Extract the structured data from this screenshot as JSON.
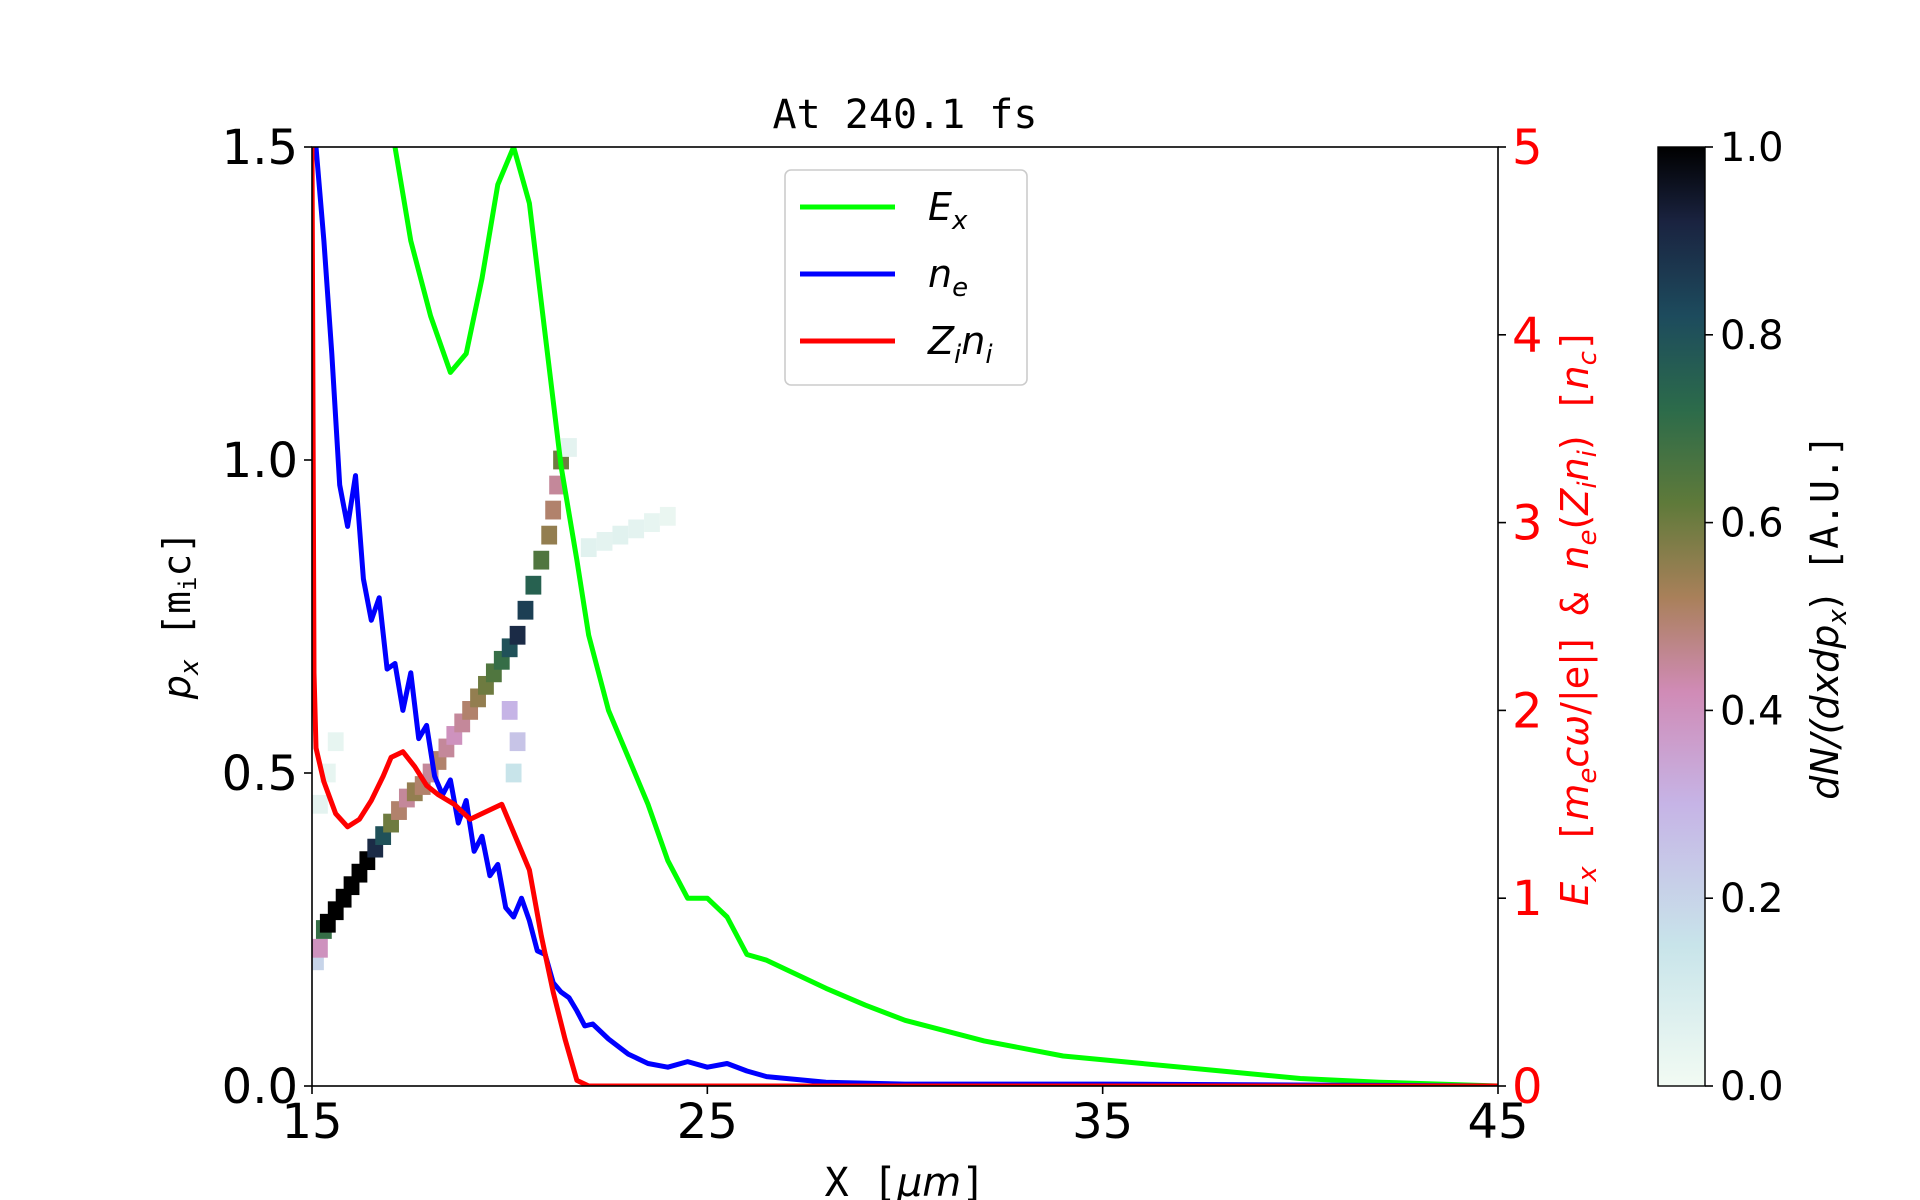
{
  "chart_data": {
    "type": "line",
    "title": "At 240.1 fs",
    "xlabel": "X [μm]",
    "ylabel_left": "p_x [m_ic]",
    "ylabel_right": "E_x [m_ecω/|e|] & n_e(Z_in_i) [n_c]",
    "xlim": [
      15,
      45
    ],
    "ylim_left": [
      0,
      1.5
    ],
    "ylim_right": [
      0,
      5
    ],
    "x_ticks": [
      "15",
      "25",
      "35",
      "45"
    ],
    "y_left_ticks": [
      "0.0",
      "0.5",
      "1.0",
      "1.5"
    ],
    "y_right_ticks": [
      "0",
      "1",
      "2",
      "3",
      "4",
      "5"
    ],
    "legend": {
      "placement": "top-center",
      "entries": [
        {
          "label_main": "E",
          "label_sub": "x",
          "color": "#00ff00"
        },
        {
          "label_main": "n",
          "label_sub": "e",
          "color": "#0000ff"
        },
        {
          "label_main": "Z",
          "label_sub": "i",
          "label_main2": "n",
          "label_sub2": "i",
          "color": "#ff0000"
        }
      ]
    },
    "series": [
      {
        "name": "E_x",
        "axis": "right",
        "color": "#00ff00",
        "x": [
          17.1,
          17.5,
          18.0,
          18.5,
          18.9,
          19.3,
          19.7,
          20.1,
          20.5,
          20.9,
          21.3,
          21.7,
          22.0,
          22.5,
          23.0,
          23.5,
          24.0,
          24.5,
          25.0,
          25.5,
          26.0,
          26.5,
          27.0,
          28.0,
          29.0,
          30.0,
          32.0,
          34.0,
          36.0,
          38.0,
          40.0,
          42.0,
          45.0
        ],
        "values": [
          5.0,
          4.5,
          4.1,
          3.8,
          3.9,
          4.3,
          4.8,
          5.0,
          4.7,
          4.0,
          3.3,
          2.8,
          2.4,
          2.0,
          1.75,
          1.5,
          1.2,
          1.0,
          1.0,
          0.9,
          0.7,
          0.67,
          0.62,
          0.52,
          0.43,
          0.35,
          0.24,
          0.16,
          0.12,
          0.08,
          0.04,
          0.02,
          0.0
        ]
      },
      {
        "name": "n_e",
        "axis": "right",
        "color": "#0000ff",
        "x": [
          15.1,
          15.3,
          15.5,
          15.7,
          15.9,
          16.1,
          16.3,
          16.5,
          16.7,
          16.9,
          17.1,
          17.3,
          17.5,
          17.7,
          17.9,
          18.1,
          18.3,
          18.5,
          18.7,
          18.9,
          19.1,
          19.3,
          19.5,
          19.7,
          19.9,
          20.1,
          20.3,
          20.5,
          20.7,
          20.9,
          21.1,
          21.3,
          21.5,
          21.7,
          21.9,
          22.1,
          22.5,
          23.0,
          23.5,
          24.0,
          24.5,
          25.0,
          25.5,
          26.0,
          26.5,
          27.0,
          28.0,
          30.0,
          35.0,
          45.0
        ],
        "values": [
          5.0,
          4.5,
          3.9,
          3.2,
          2.98,
          3.25,
          2.7,
          2.48,
          2.6,
          2.22,
          2.25,
          2.0,
          2.2,
          1.85,
          1.92,
          1.65,
          1.55,
          1.63,
          1.4,
          1.52,
          1.25,
          1.33,
          1.12,
          1.18,
          0.95,
          0.9,
          1.0,
          0.88,
          0.72,
          0.7,
          0.55,
          0.5,
          0.47,
          0.4,
          0.32,
          0.33,
          0.25,
          0.17,
          0.12,
          0.1,
          0.13,
          0.1,
          0.12,
          0.08,
          0.05,
          0.04,
          0.02,
          0.01,
          0.01,
          0.0
        ]
      },
      {
        "name": "Z_in_i",
        "axis": "right",
        "color": "#ff0000",
        "x": [
          15.0,
          15.05,
          15.1,
          15.3,
          15.6,
          15.9,
          16.2,
          16.5,
          16.8,
          17.0,
          17.3,
          17.6,
          17.9,
          18.2,
          18.6,
          19.0,
          19.4,
          19.8,
          20.0,
          20.2,
          20.5,
          20.8,
          21.1,
          21.4,
          21.7,
          22.0,
          23.0,
          25.0,
          30.0,
          45.0
        ],
        "values": [
          5.0,
          2.2,
          1.8,
          1.62,
          1.45,
          1.38,
          1.42,
          1.52,
          1.65,
          1.75,
          1.78,
          1.7,
          1.6,
          1.55,
          1.5,
          1.42,
          1.46,
          1.5,
          1.4,
          1.3,
          1.15,
          0.8,
          0.5,
          0.25,
          0.03,
          0.0,
          0.0,
          0.0,
          0.0,
          0.0
        ]
      }
    ],
    "heatmap": {
      "name": "dN/(dxdp_x)",
      "axis": "left",
      "colormap": "cubehelix_r",
      "cells": [
        [
          15.1,
          0.2,
          0.2
        ],
        [
          15.2,
          0.22,
          0.4
        ],
        [
          15.3,
          0.25,
          0.7
        ],
        [
          15.4,
          0.26,
          1.0
        ],
        [
          15.6,
          0.28,
          1.0
        ],
        [
          15.8,
          0.3,
          1.0
        ],
        [
          16.0,
          0.32,
          1.0
        ],
        [
          16.2,
          0.34,
          1.0
        ],
        [
          16.4,
          0.36,
          1.0
        ],
        [
          16.6,
          0.38,
          0.9
        ],
        [
          16.8,
          0.4,
          0.8
        ],
        [
          17.0,
          0.42,
          0.6
        ],
        [
          17.2,
          0.44,
          0.5
        ],
        [
          17.4,
          0.46,
          0.45
        ],
        [
          17.6,
          0.47,
          0.55
        ],
        [
          17.8,
          0.48,
          0.5
        ],
        [
          18.0,
          0.5,
          0.45
        ],
        [
          18.2,
          0.52,
          0.5
        ],
        [
          18.4,
          0.54,
          0.45
        ],
        [
          18.6,
          0.56,
          0.4
        ],
        [
          18.8,
          0.58,
          0.45
        ],
        [
          19.0,
          0.6,
          0.5
        ],
        [
          19.2,
          0.62,
          0.55
        ],
        [
          19.4,
          0.64,
          0.6
        ],
        [
          19.6,
          0.66,
          0.65
        ],
        [
          19.8,
          0.68,
          0.7
        ],
        [
          20.0,
          0.7,
          0.8
        ],
        [
          20.2,
          0.72,
          0.9
        ],
        [
          20.4,
          0.76,
          0.85
        ],
        [
          20.6,
          0.8,
          0.75
        ],
        [
          20.8,
          0.84,
          0.65
        ],
        [
          21.0,
          0.88,
          0.55
        ],
        [
          21.1,
          0.92,
          0.5
        ],
        [
          21.2,
          0.96,
          0.45
        ],
        [
          21.3,
          1.0,
          0.6
        ],
        [
          20.0,
          0.6,
          0.3
        ],
        [
          20.2,
          0.55,
          0.25
        ],
        [
          20.1,
          0.5,
          0.15
        ],
        [
          21.5,
          1.02,
          0.05
        ],
        [
          22.0,
          0.86,
          0.06
        ],
        [
          22.4,
          0.87,
          0.05
        ],
        [
          22.8,
          0.88,
          0.06
        ],
        [
          23.2,
          0.89,
          0.05
        ],
        [
          23.6,
          0.9,
          0.04
        ],
        [
          24.0,
          0.91,
          0.03
        ],
        [
          15.4,
          0.5,
          0.04
        ],
        [
          15.6,
          0.55,
          0.04
        ],
        [
          15.2,
          0.45,
          0.05
        ]
      ]
    },
    "colorbar": {
      "label": "dN/(dxdp_x) [A.U.]",
      "range": [
        0,
        1
      ],
      "ticks": [
        "0.0",
        "0.2",
        "0.4",
        "0.6",
        "0.8",
        "1.0"
      ]
    }
  }
}
